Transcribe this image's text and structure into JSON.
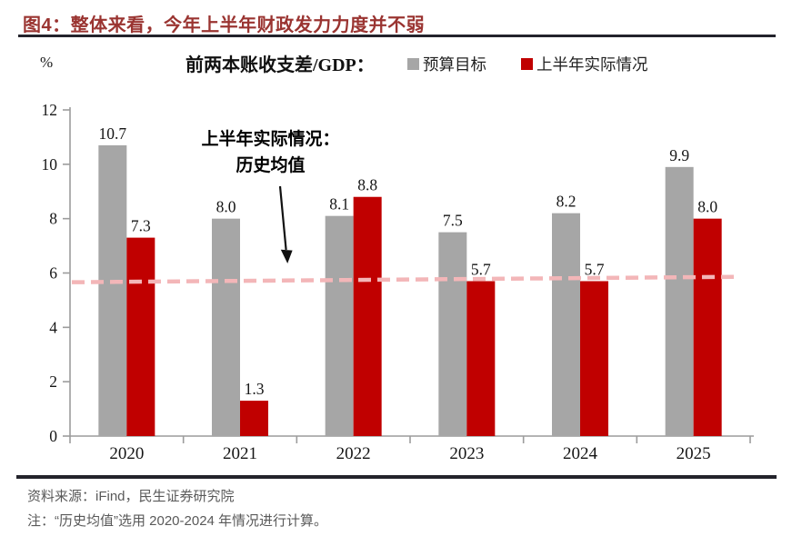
{
  "figure": {
    "title": "图4：整体来看，今年上半年财政发力力度并不弱",
    "unit_label": "%",
    "source": "资料来源：iFind，民生证券研究院",
    "note": "注：“历史均值”选用 2020-2024 年情况进行计算。"
  },
  "colors": {
    "title_red": "#9a3431",
    "budget_gray": "#a6a6a6",
    "actual_red": "#c00000",
    "mean_line_pink": "#f3b6b8",
    "axis_gray": "#9c9c9c",
    "divider_dark": "#23232b",
    "footer_text": "#595959",
    "label_black": "#151515"
  },
  "chart_data": {
    "type": "bar",
    "title": "前两本账收支差/GDP：",
    "ylabel": "%",
    "ylim": [
      0,
      12
    ],
    "ytick_step": 2,
    "yticks": [
      0,
      2,
      4,
      6,
      8,
      10,
      12
    ],
    "grid": false,
    "legend_position": "top",
    "categories": [
      "2020",
      "2021",
      "2022",
      "2023",
      "2024",
      "2025"
    ],
    "series": [
      {
        "key": "budget",
        "name": "预算目标",
        "color": "#a6a6a6",
        "values": [
          10.7,
          8.0,
          8.1,
          7.5,
          8.2,
          9.9
        ]
      },
      {
        "key": "actual",
        "name": "上半年实际情况",
        "color": "#c00000",
        "values": [
          7.3,
          1.3,
          8.8,
          5.7,
          5.7,
          8.0
        ]
      }
    ],
    "mean_line": {
      "label_line1": "上半年实际情况：",
      "label_line2": "历史均值",
      "value": 5.76,
      "style": "dashed-pink"
    }
  }
}
